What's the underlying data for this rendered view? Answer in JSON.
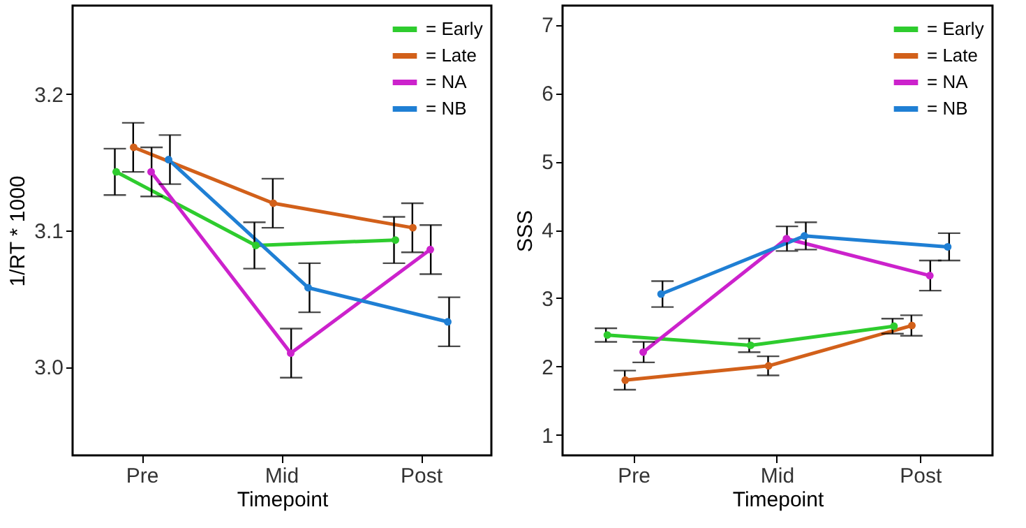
{
  "chart_data": [
    {
      "type": "line",
      "categories": [
        "Pre",
        "Mid",
        "Post"
      ],
      "xlabel": "Timepoint",
      "ylabel": "1/RT * 1000",
      "ylim": [
        2.935,
        3.265
      ],
      "yticks": [
        {
          "value": 3.0,
          "label": "3.0"
        },
        {
          "value": 3.1,
          "label": "3.1"
        },
        {
          "value": 3.2,
          "label": "3.2"
        }
      ],
      "grid": false,
      "legend": "top right",
      "marker": "circle",
      "line_style": "solid",
      "series": [
        {
          "name": "= Early",
          "color": "#2ecc2e",
          "values": [
            3.143,
            3.089,
            3.093
          ],
          "errors": [
            0.017,
            0.017,
            0.017
          ]
        },
        {
          "name": "= Late",
          "color": "#d2601a",
          "values": [
            3.161,
            3.12,
            3.102
          ],
          "errors": [
            0.018,
            0.018,
            0.018
          ]
        },
        {
          "name": "= NA",
          "color": "#cc22cc",
          "values": [
            3.143,
            3.01,
            3.086
          ],
          "errors": [
            0.018,
            0.018,
            0.018
          ]
        },
        {
          "name": "= NB",
          "color": "#1f7fd4",
          "values": [
            3.152,
            3.058,
            3.033
          ],
          "errors": [
            0.018,
            0.018,
            0.018
          ]
        }
      ]
    },
    {
      "type": "line",
      "categories": [
        "Pre",
        "Mid",
        "Post"
      ],
      "xlabel": "Timepoint",
      "ylabel": "SSS",
      "ylim": [
        0.7,
        7.28
      ],
      "yticks": [
        1,
        2,
        3,
        4,
        5,
        6,
        7
      ],
      "grid": false,
      "legend": "top right",
      "marker": "circle",
      "line_style": "solid",
      "series": [
        {
          "name": "= Early",
          "color": "#2ecc2e",
          "values": [
            2.46,
            2.31,
            2.59
          ],
          "errors": [
            0.1,
            0.1,
            0.11
          ]
        },
        {
          "name": "= Late",
          "color": "#d2601a",
          "values": [
            1.8,
            2.01,
            2.6
          ],
          "errors": [
            0.14,
            0.14,
            0.15
          ]
        },
        {
          "name": "= NA",
          "color": "#cc22cc",
          "values": [
            2.21,
            3.87,
            3.33
          ],
          "errors": [
            0.15,
            0.18,
            0.22
          ]
        },
        {
          "name": "= NB",
          "color": "#1f7fd4",
          "values": [
            3.06,
            3.91,
            3.75
          ],
          "errors": [
            0.19,
            0.2,
            0.2
          ]
        }
      ]
    }
  ]
}
